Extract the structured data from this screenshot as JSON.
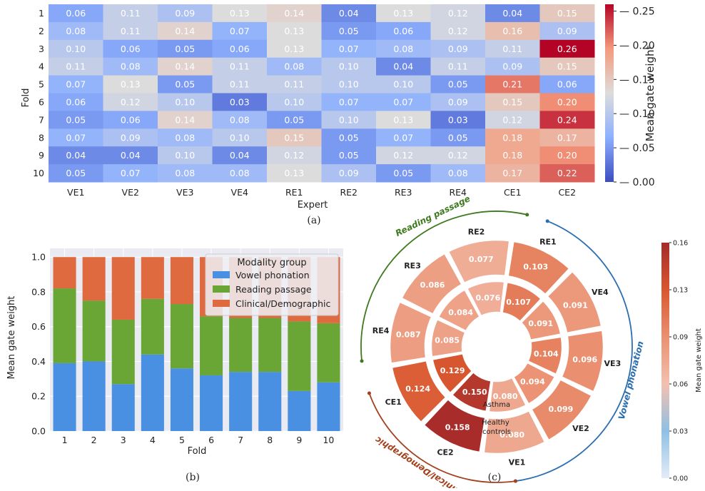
{
  "panels": {
    "a": "(a)",
    "b": "(b)",
    "c": "(c)"
  },
  "chart_data": [
    {
      "type": "heatmap",
      "xlabel": "Expert",
      "ylabel": "Fold",
      "columns": [
        "VE1",
        "VE2",
        "VE3",
        "VE4",
        "RE1",
        "RE2",
        "RE3",
        "RE4",
        "CE1",
        "CE2"
      ],
      "rows": [
        "1",
        "2",
        "3",
        "4",
        "5",
        "6",
        "7",
        "8",
        "9",
        "10"
      ],
      "values": [
        [
          0.06,
          0.11,
          0.09,
          0.13,
          0.14,
          0.04,
          0.13,
          0.12,
          0.04,
          0.15
        ],
        [
          0.08,
          0.11,
          0.14,
          0.07,
          0.13,
          0.05,
          0.06,
          0.12,
          0.16,
          0.09
        ],
        [
          0.1,
          0.06,
          0.05,
          0.06,
          0.13,
          0.07,
          0.08,
          0.09,
          0.11,
          0.26
        ],
        [
          0.11,
          0.08,
          0.14,
          0.11,
          0.08,
          0.1,
          0.04,
          0.11,
          0.09,
          0.15
        ],
        [
          0.07,
          0.13,
          0.05,
          0.11,
          0.11,
          0.1,
          0.1,
          0.05,
          0.21,
          0.06
        ],
        [
          0.06,
          0.12,
          0.1,
          0.03,
          0.1,
          0.07,
          0.07,
          0.09,
          0.15,
          0.2
        ],
        [
          0.05,
          0.06,
          0.14,
          0.08,
          0.05,
          0.1,
          0.13,
          0.03,
          0.12,
          0.24
        ],
        [
          0.07,
          0.09,
          0.08,
          0.1,
          0.15,
          0.05,
          0.07,
          0.05,
          0.18,
          0.17
        ],
        [
          0.04,
          0.04,
          0.1,
          0.04,
          0.12,
          0.05,
          0.12,
          0.12,
          0.18,
          0.2
        ],
        [
          0.05,
          0.07,
          0.08,
          0.08,
          0.13,
          0.09,
          0.05,
          0.08,
          0.17,
          0.22
        ]
      ],
      "colorbar": {
        "label": "Mean gate weight",
        "min": 0,
        "max": 0.26,
        "ticks": [
          "0.00",
          "0.05",
          "0.10",
          "0.15",
          "0.20",
          "0.25"
        ]
      },
      "colormap": "coolwarm"
    },
    {
      "type": "bar",
      "stacked": true,
      "xlabel": "Fold",
      "ylabel": "Mean gate weight",
      "ylim": [
        0,
        1.05
      ],
      "yticks": [
        "0.0",
        "0.2",
        "0.4",
        "0.6",
        "0.8",
        "1.0"
      ],
      "categories": [
        "1",
        "2",
        "3",
        "4",
        "5",
        "6",
        "7",
        "8",
        "9",
        "10"
      ],
      "legend_title": "Modality group",
      "legend_position": "top-right",
      "grid": true,
      "series": [
        {
          "name": "Vowel phonation",
          "color": "#4a90e2",
          "values": [
            0.39,
            0.4,
            0.27,
            0.44,
            0.36,
            0.32,
            0.34,
            0.34,
            0.23,
            0.28
          ]
        },
        {
          "name": "Reading passage",
          "color": "#6aa636",
          "values": [
            0.43,
            0.35,
            0.37,
            0.32,
            0.37,
            0.34,
            0.31,
            0.31,
            0.4,
            0.34
          ]
        },
        {
          "name": "Clinical/Demographic",
          "color": "#df6a40",
          "values": [
            0.18,
            0.25,
            0.36,
            0.24,
            0.27,
            0.34,
            0.35,
            0.35,
            0.37,
            0.38
          ]
        }
      ]
    },
    {
      "type": "radial",
      "rings": [
        "Asthma",
        "Healthy controls"
      ],
      "inner_label": "Asthma",
      "outer_label": "Healthy\ncontrols",
      "experts": [
        "VE1",
        "VE2",
        "VE3",
        "VE4",
        "RE1",
        "RE2",
        "RE3",
        "RE4",
        "CE1",
        "CE2"
      ],
      "inner_values": [
        0.08,
        0.094,
        0.104,
        0.091,
        0.107,
        0.076,
        0.084,
        0.085,
        0.129,
        0.15
      ],
      "outer_values": [
        0.08,
        0.099,
        0.096,
        0.091,
        0.103,
        0.077,
        0.086,
        0.087,
        0.124,
        0.158
      ],
      "groups": [
        {
          "name": "Vowel phonation",
          "color": "#2a6db0"
        },
        {
          "name": "Reading passage",
          "color": "#3f7a1f"
        },
        {
          "name": "Clinical/Demographic",
          "color": "#a5401c"
        }
      ],
      "colorbar": {
        "label": "Mean gate weight",
        "min": 0,
        "max": 0.16,
        "ticks": [
          "0.00",
          "0.03",
          "0.06",
          "0.09",
          "0.13",
          "0.16"
        ]
      }
    }
  ]
}
